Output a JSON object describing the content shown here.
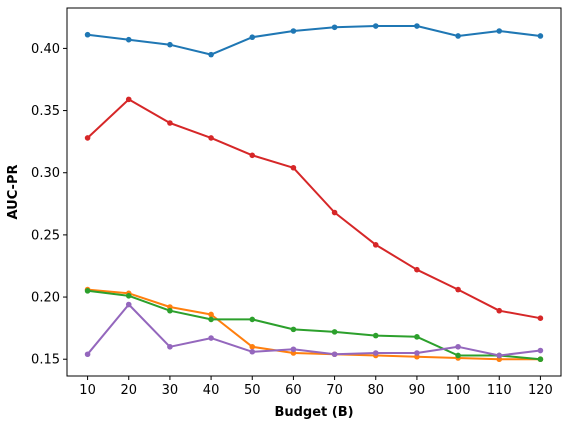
{
  "chart_data": {
    "type": "line",
    "title": "",
    "xlabel": "Budget (B)",
    "ylabel": "AUC-PR",
    "x": [
      10,
      20,
      30,
      40,
      50,
      60,
      70,
      80,
      90,
      100,
      110,
      120
    ],
    "xlim": [
      5,
      125
    ],
    "ylim": [
      0.1365,
      0.4325
    ],
    "xticks": [
      "10",
      "20",
      "30",
      "40",
      "50",
      "60",
      "70",
      "80",
      "90",
      "100",
      "110",
      "120"
    ],
    "yticks": [
      "0.15",
      "0.20",
      "0.25",
      "0.30",
      "0.35",
      "0.40"
    ],
    "grid": false,
    "legend": "none",
    "series": [
      {
        "color": "#1f77b4",
        "values": [
          0.411,
          0.407,
          0.403,
          0.395,
          0.409,
          0.414,
          0.417,
          0.418,
          0.418,
          0.41,
          0.414,
          0.41
        ]
      },
      {
        "color": "#ff7f0e",
        "values": [
          0.206,
          0.203,
          0.192,
          0.186,
          0.16,
          0.155,
          0.154,
          0.153,
          0.152,
          0.151,
          0.15,
          0.15
        ]
      },
      {
        "color": "#2ca02c",
        "values": [
          0.205,
          0.201,
          0.189,
          0.182,
          0.182,
          0.174,
          0.172,
          0.169,
          0.168,
          0.153,
          0.153,
          0.15
        ]
      },
      {
        "color": "#d62728",
        "values": [
          0.328,
          0.359,
          0.34,
          0.328,
          0.314,
          0.304,
          0.268,
          0.242,
          0.222,
          0.206,
          0.189,
          0.183
        ]
      },
      {
        "color": "#9467bd",
        "values": [
          0.154,
          0.194,
          0.16,
          0.167,
          0.156,
          0.158,
          0.154,
          0.155,
          0.155,
          0.16,
          0.153,
          0.157
        ]
      }
    ]
  }
}
